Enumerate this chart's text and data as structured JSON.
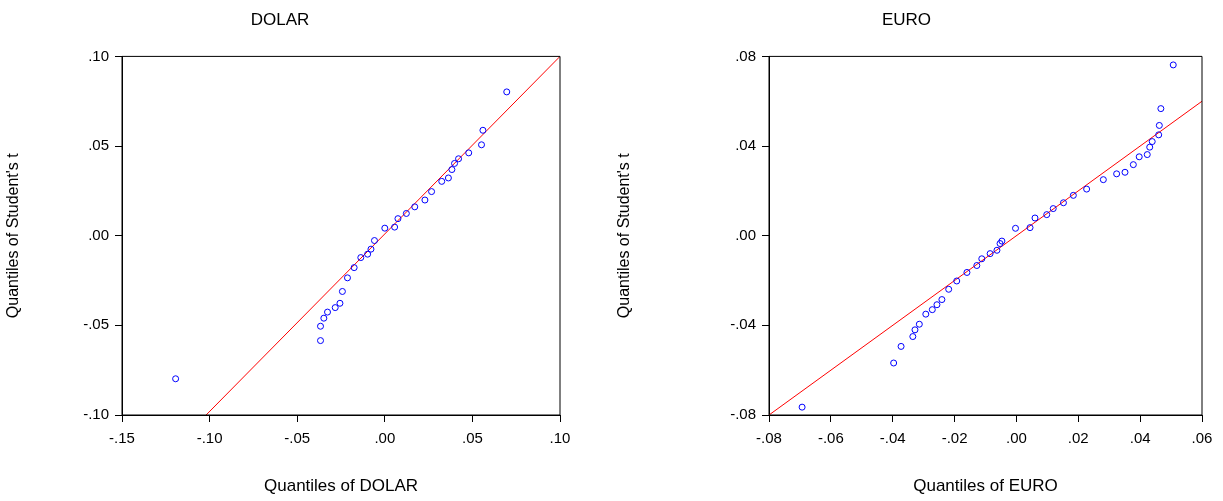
{
  "chart_data": [
    {
      "type": "scatter",
      "title": "DOLAR",
      "xlabel": "Quantiles of DOLAR",
      "ylabel": "Quantiles of Student's t",
      "grid": false,
      "legend": false,
      "xlim": [
        -0.15,
        0.1
      ],
      "xticks": [
        {
          "value": -0.15,
          "label": "-.15"
        },
        {
          "value": -0.1,
          "label": "-.10"
        },
        {
          "value": -0.05,
          "label": "-.05"
        },
        {
          "value": 0,
          "label": ".00"
        },
        {
          "value": 0.05,
          "label": ".05"
        },
        {
          "value": 0.1,
          "label": ".10"
        }
      ],
      "ylim": [
        -0.1,
        0.1
      ],
      "yticks": [
        {
          "value": -0.1,
          "label": "-.10"
        },
        {
          "value": -0.05,
          "label": "-.05"
        },
        {
          "value": 0,
          "label": ".00"
        },
        {
          "value": 0.05,
          "label": ".05"
        },
        {
          "value": 0.1,
          "label": ".10"
        }
      ],
      "series": [
        {
          "marker": "circle",
          "color": "#0000ff",
          "x": [
            -0.1194,
            -0.0367,
            -0.0367,
            -0.0348,
            -0.0327,
            -0.0283,
            -0.0256,
            -0.0242,
            -0.0213,
            -0.0175,
            -0.0137,
            -0.0098,
            -0.0079,
            -0.0059,
            0.0,
            0.0056,
            0.0075,
            0.0123,
            0.0171,
            0.0229,
            0.0267,
            0.0325,
            0.0363,
            0.0383,
            0.0398,
            0.0421,
            0.0479,
            0.0552,
            0.056,
            0.0696
          ],
          "values": [
            -0.0798,
            -0.0585,
            -0.0505,
            -0.046,
            -0.0426,
            -0.0401,
            -0.0377,
            -0.0311,
            -0.0235,
            -0.0178,
            -0.0122,
            -0.0103,
            -0.0075,
            -0.0027,
            0.0042,
            0.0048,
            0.0095,
            0.0124,
            0.0161,
            0.0199,
            0.0246,
            0.0303,
            0.0322,
            0.0369,
            0.0403,
            0.0429,
            0.0462,
            0.0507,
            0.0588,
            0.0802
          ]
        },
        {
          "type": "line",
          "color": "#ff0000",
          "x": [
            -0.102,
            0.1
          ],
          "values": [
            -0.1,
            0.1
          ]
        }
      ]
    },
    {
      "type": "scatter",
      "title": "EURO",
      "xlabel": "Quantiles of EURO",
      "ylabel": "Quantiles of Student's t",
      "grid": false,
      "legend": false,
      "xlim": [
        -0.08,
        0.06
      ],
      "xticks": [
        {
          "value": -0.08,
          "label": "-.08"
        },
        {
          "value": -0.06,
          "label": "-.06"
        },
        {
          "value": -0.04,
          "label": "-.04"
        },
        {
          "value": -0.02,
          "label": "-.02"
        },
        {
          "value": 0,
          "label": ".00"
        },
        {
          "value": 0.02,
          "label": ".02"
        },
        {
          "value": 0.04,
          "label": ".04"
        },
        {
          "value": 0.06,
          "label": ".06"
        }
      ],
      "ylim": [
        -0.08,
        0.08
      ],
      "yticks": [
        {
          "value": -0.08,
          "label": "-.08"
        },
        {
          "value": -0.04,
          "label": "-.04"
        },
        {
          "value": 0,
          "label": ".00"
        },
        {
          "value": 0.04,
          "label": ".04"
        },
        {
          "value": 0.08,
          "label": ".08"
        }
      ],
      "series": [
        {
          "marker": "circle",
          "color": "#0000ff",
          "x": [
            -0.0693,
            -0.0397,
            -0.0373,
            -0.0335,
            -0.0328,
            -0.0314,
            -0.0293,
            -0.0272,
            -0.0257,
            -0.0241,
            -0.0219,
            -0.0193,
            -0.016,
            -0.0128,
            -0.0112,
            -0.0085,
            -0.0063,
            -0.0053,
            -0.0047,
            -0.0003,
            0.0044,
            0.006,
            0.0098,
            0.0119,
            0.0152,
            0.0184,
            0.0227,
            0.0281,
            0.0324,
            0.0351,
            0.0378,
            0.0397,
            0.0423,
            0.0431,
            0.0439,
            0.046,
            0.0462,
            0.0467,
            0.0507
          ],
          "values": [
            -0.0765,
            -0.0568,
            -0.0494,
            -0.045,
            -0.042,
            -0.0395,
            -0.035,
            -0.033,
            -0.0308,
            -0.0285,
            -0.0239,
            -0.0202,
            -0.0164,
            -0.0133,
            -0.0103,
            -0.008,
            -0.0065,
            -0.0035,
            -0.0024,
            0.0033,
            0.0036,
            0.0079,
            0.0094,
            0.0121,
            0.0147,
            0.018,
            0.0208,
            0.025,
            0.0276,
            0.0283,
            0.0317,
            0.0352,
            0.0362,
            0.0395,
            0.042,
            0.045,
            0.0492,
            0.0567,
            0.0762
          ]
        },
        {
          "type": "line",
          "color": "#ff0000",
          "x": [
            -0.08,
            0.06
          ],
          "values": [
            -0.08,
            0.06
          ]
        }
      ]
    }
  ]
}
